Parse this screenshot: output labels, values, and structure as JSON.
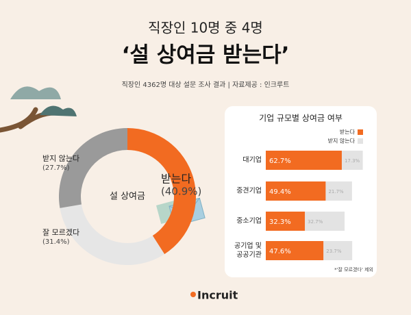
{
  "header": {
    "subtitle": "직장인 10명 중 4명",
    "title": "‘설 상여금 받는다’",
    "source": "직장인 4362명 대상 설문 조사 결과 | 자료제공 : 인크루트"
  },
  "chart_data": [
    {
      "type": "pie",
      "center_label": "설 상여금",
      "categories": [
        "받는다",
        "잘 모르겠다",
        "받지 않는다"
      ],
      "values": [
        40.9,
        31.4,
        27.7
      ],
      "value_labels": [
        "(40.9%)",
        "(31.4%)",
        "(27.7%)"
      ],
      "colors": [
        "#f26b21",
        "#e6e6e6",
        "#9a9a9a"
      ]
    },
    {
      "type": "bar",
      "title": "기업 규모별 상여금 여부",
      "stacked": true,
      "orientation": "horizontal",
      "categories": [
        "대기업",
        "중견기업",
        "중소기업",
        "공기업 및\n공공기관"
      ],
      "series": [
        {
          "name": "받는다",
          "color": "#f26b21",
          "values": [
            62.7,
            49.4,
            32.3,
            47.6
          ],
          "value_labels": [
            "62.7%",
            "49.4%",
            "32.3%",
            "47.6%"
          ]
        },
        {
          "name": "받지 않는다",
          "color": "#e3e3e3",
          "values": [
            17.3,
            21.7,
            32.7,
            23.7
          ],
          "value_labels": [
            "17.3%",
            "21.7%",
            "32.7%",
            "23.7%"
          ]
        }
      ],
      "footnote": "*'잘 모르겠다' 제외"
    }
  ],
  "logo": "Incruit"
}
